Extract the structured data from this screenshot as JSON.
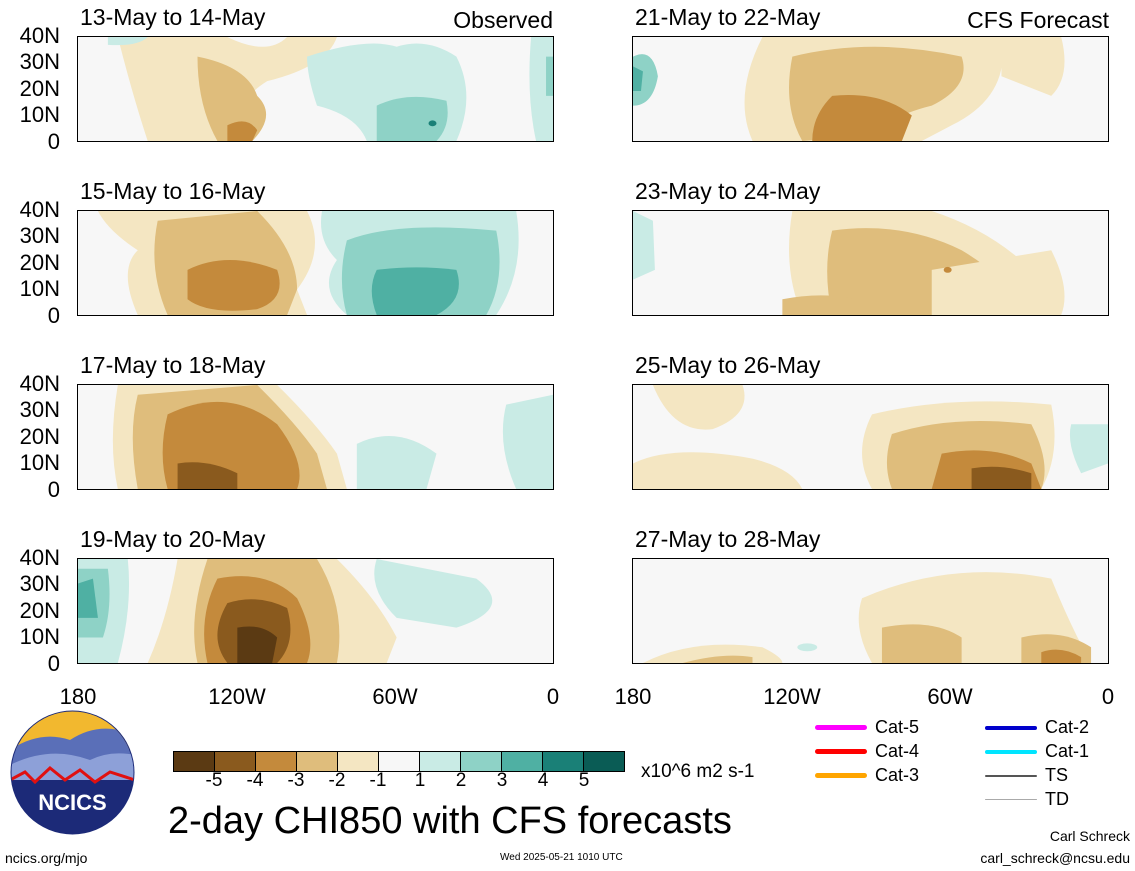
{
  "left_header": "Observed",
  "right_header": "CFS Forecast",
  "panels": [
    {
      "title": "13-May to 14-May",
      "type": "observed"
    },
    {
      "title": "15-May to 16-May",
      "type": "observed"
    },
    {
      "title": "17-May to 18-May",
      "type": "observed"
    },
    {
      "title": "19-May to 20-May",
      "type": "observed"
    },
    {
      "title": "21-May to 22-May",
      "type": "forecast"
    },
    {
      "title": "23-May to 24-May",
      "type": "forecast"
    },
    {
      "title": "25-May to 26-May",
      "type": "forecast"
    },
    {
      "title": "27-May to 28-May",
      "type": "forecast"
    }
  ],
  "lat_labels": [
    "40N",
    "30N",
    "20N",
    "10N",
    "0"
  ],
  "lon_labels": [
    "180",
    "120W",
    "60W",
    "0"
  ],
  "colorbar": {
    "colors": [
      "#5b3a13",
      "#8a5a1e",
      "#c48a3c",
      "#dfbd7c",
      "#f4e6c2",
      "#f7f7f7",
      "#c9ebe5",
      "#8ed2c6",
      "#4fb0a3",
      "#1a8077",
      "#0a5c55"
    ],
    "labels": [
      "-5",
      "-4",
      "-3",
      "-2",
      "-1",
      "1",
      "2",
      "3",
      "4",
      "5"
    ],
    "units": "x10^6 m2 s-1"
  },
  "main_title": "2-day CHI850 with CFS forecasts",
  "logo_text": "NCICS",
  "legend": [
    {
      "label": "Cat-5",
      "color": "#ff00ff"
    },
    {
      "label": "Cat-4",
      "color": "#ff0000"
    },
    {
      "label": "Cat-3",
      "color": "#ffa500"
    },
    {
      "label": "Cat-2",
      "color": "#0000cc"
    },
    {
      "label": "Cat-1",
      "color": "#00e5ff"
    },
    {
      "label": "TS",
      "color": "#555555"
    },
    {
      "label": "TD",
      "color": "#aaaaaa"
    }
  ],
  "footer": {
    "url": "ncics.org/mjo",
    "timestamp": "Wed 2025-05-21 1010 UTC",
    "author": "Carl Schreck",
    "email": "carl_schreck@ncsu.edu"
  }
}
